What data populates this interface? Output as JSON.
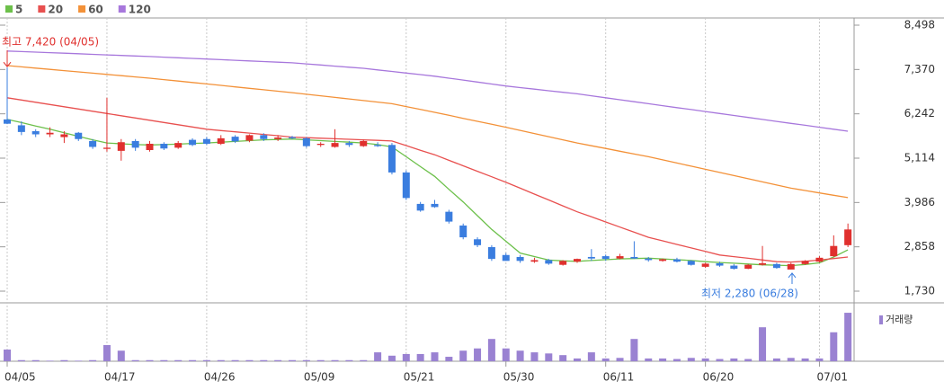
{
  "chart_data": {
    "type": "candlestick",
    "categories": [
      "04/05",
      null,
      null,
      null,
      null,
      null,
      null,
      "04/17",
      null,
      null,
      null,
      null,
      null,
      null,
      "04/26",
      null,
      null,
      null,
      null,
      null,
      null,
      "05/09",
      null,
      null,
      null,
      null,
      null,
      null,
      "05/21",
      null,
      null,
      null,
      null,
      null,
      null,
      "05/30",
      null,
      null,
      null,
      null,
      null,
      null,
      "06/11",
      null,
      null,
      null,
      null,
      null,
      null,
      "06/20",
      null,
      null,
      null,
      null,
      null,
      null,
      null,
      "07/01",
      null,
      null
    ],
    "open": [
      6100,
      5950,
      5800,
      5720,
      5650,
      5760,
      5550,
      5350,
      5300,
      5550,
      5320,
      5480,
      5380,
      5580,
      5600,
      5480,
      5660,
      5560,
      5700,
      5600,
      5650,
      5620,
      5450,
      5400,
      5500,
      5420,
      5450,
      5450,
      4750,
      3950,
      3950,
      3750,
      3400,
      3050,
      2850,
      2650,
      2600,
      2480,
      2520,
      2400,
      2480,
      2600,
      2620,
      2560,
      2600,
      2560,
      2500,
      2540,
      2500,
      2350,
      2440,
      2380,
      2300,
      2400,
      2420,
      2280,
      2420,
      2480,
      2620,
      2900
    ],
    "high": [
      7420,
      6050,
      5850,
      5900,
      5800,
      5780,
      5600,
      6650,
      5600,
      5600,
      5550,
      5520,
      5550,
      5620,
      5650,
      5700,
      5700,
      5720,
      5750,
      5700,
      5680,
      5650,
      5520,
      5850,
      5550,
      5580,
      5520,
      5500,
      4800,
      4000,
      4050,
      3800,
      3450,
      3100,
      2900,
      2700,
      2650,
      2580,
      2550,
      2520,
      2560,
      2800,
      2660,
      2680,
      3000,
      2600,
      2560,
      2580,
      2520,
      2450,
      2480,
      2420,
      2420,
      2880,
      2450,
      2450,
      2520,
      2620,
      3150,
      3450
    ],
    "low": [
      5980,
      5700,
      5650,
      5650,
      5500,
      5550,
      5350,
      5280,
      5050,
      5300,
      5280,
      5320,
      5350,
      5420,
      5450,
      5450,
      5500,
      5520,
      5550,
      5550,
      5600,
      5380,
      5400,
      5380,
      5400,
      5400,
      5400,
      4700,
      4050,
      3750,
      3850,
      3450,
      3050,
      2850,
      2500,
      2500,
      2450,
      2450,
      2400,
      2380,
      2450,
      2500,
      2500,
      2540,
      2550,
      2480,
      2480,
      2460,
      2380,
      2320,
      2350,
      2280,
      2290,
      2380,
      2300,
      2280,
      2400,
      2460,
      2600,
      2850
    ],
    "close": [
      5990,
      5780,
      5720,
      5760,
      5720,
      5600,
      5400,
      5380,
      5520,
      5380,
      5480,
      5360,
      5500,
      5450,
      5480,
      5620,
      5540,
      5700,
      5600,
      5640,
      5620,
      5420,
      5480,
      5500,
      5450,
      5550,
      5420,
      4750,
      4100,
      3780,
      3870,
      3500,
      3100,
      2900,
      2550,
      2500,
      2500,
      2520,
      2430,
      2500,
      2550,
      2560,
      2550,
      2620,
      2560,
      2520,
      2540,
      2480,
      2400,
      2430,
      2380,
      2300,
      2400,
      2440,
      2320,
      2420,
      2500,
      2580,
      2880,
      3300
    ],
    "up_color": "#e0302e",
    "down_color": "#3a7ddf",
    "series": [
      {
        "name": "5",
        "color": "#6cc04a",
        "values": [
          6100,
          6020,
          5930,
          5850,
          5760,
          5670,
          5580,
          5500,
          5480,
          5460,
          5450,
          5460,
          5470,
          5490,
          5500,
          5520,
          5540,
          5560,
          5580,
          5590,
          5600,
          5580,
          5560,
          5540,
          5520,
          5500,
          5460,
          5400,
          5150,
          4900,
          4650,
          4320,
          4000,
          3650,
          3300,
          3000,
          2700,
          2610,
          2520,
          2500,
          2490,
          2510,
          2530,
          2550,
          2560,
          2570,
          2550,
          2530,
          2510,
          2480,
          2460,
          2440,
          2420,
          2400,
          2390,
          2380,
          2410,
          2450,
          2600,
          2780
        ]
      },
      {
        "name": "20",
        "color": "#e8504f",
        "values": [
          6650,
          6593,
          6536,
          6479,
          6422,
          6365,
          6308,
          6250,
          6193,
          6136,
          6079,
          6022,
          5965,
          5908,
          5850,
          5817,
          5784,
          5751,
          5718,
          5685,
          5650,
          5636,
          5622,
          5608,
          5594,
          5580,
          5566,
          5550,
          5433,
          5316,
          5200,
          5060,
          4920,
          4780,
          4640,
          4500,
          4350,
          4200,
          4050,
          3900,
          3750,
          3620,
          3490,
          3360,
          3230,
          3100,
          3010,
          2920,
          2830,
          2740,
          2650,
          2608,
          2566,
          2524,
          2480,
          2470,
          2490,
          2520,
          2560,
          2600
        ]
      },
      {
        "name": "60",
        "color": "#f39138",
        "values": [
          7470,
          7438,
          7406,
          7374,
          7342,
          7310,
          7278,
          7246,
          7214,
          7182,
          7150,
          7113,
          7076,
          7039,
          7002,
          6965,
          6928,
          6891,
          6854,
          6817,
          6780,
          6740,
          6700,
          6660,
          6620,
          6580,
          6540,
          6500,
          6427,
          6354,
          6280,
          6204,
          6128,
          6052,
          5976,
          5900,
          5820,
          5740,
          5660,
          5580,
          5500,
          5430,
          5360,
          5290,
          5220,
          5150,
          5070,
          4990,
          4910,
          4830,
          4750,
          4670,
          4590,
          4510,
          4430,
          4350,
          4290,
          4230,
          4170,
          4110
        ]
      },
      {
        "name": "120",
        "color": "#a777dc",
        "values": [
          7840,
          7826,
          7812,
          7798,
          7784,
          7770,
          7756,
          7742,
          7728,
          7714,
          7700,
          7684,
          7668,
          7652,
          7636,
          7620,
          7604,
          7588,
          7572,
          7556,
          7540,
          7512,
          7484,
          7456,
          7428,
          7400,
          7360,
          7320,
          7280,
          7240,
          7200,
          7150,
          7100,
          7050,
          7000,
          6950,
          6910,
          6870,
          6830,
          6790,
          6750,
          6700,
          6650,
          6600,
          6550,
          6500,
          6450,
          6400,
          6350,
          6300,
          6250,
          6200,
          6150,
          6100,
          6050,
          6000,
          5950,
          5900,
          5850,
          5800
        ]
      }
    ],
    "ylim": [
      1730,
      8498
    ],
    "yticks": [
      {
        "value": 8498,
        "label": "8,498"
      },
      {
        "value": 7370,
        "label": "7,370"
      },
      {
        "value": 6242,
        "label": "6,242"
      },
      {
        "value": 5114,
        "label": "5,114"
      },
      {
        "value": 3986,
        "label": "3,986"
      },
      {
        "value": 2858,
        "label": "2,858"
      },
      {
        "value": 1730,
        "label": "1,730"
      }
    ],
    "volume": {
      "name": "거래량",
      "color": "#9a82d2",
      "vlim": [
        0,
        100
      ],
      "values": [
        21,
        2,
        2,
        1,
        2,
        1,
        2,
        29,
        19,
        2,
        2,
        2,
        2,
        2,
        2,
        2,
        2,
        2,
        2,
        2,
        2,
        2,
        2,
        2,
        2,
        2,
        16,
        10,
        13,
        13,
        16,
        8,
        19,
        23,
        40,
        23,
        19,
        16,
        14,
        11,
        5,
        16,
        5,
        6,
        40,
        5,
        5,
        4,
        6,
        5,
        4,
        5,
        4,
        61,
        5,
        6,
        5,
        5,
        52,
        87
      ]
    },
    "annotations": [
      {
        "text": "최고 7,420 (04/05)",
        "value": 7420,
        "color": "#e0302e"
      },
      {
        "text": "최저 2,280 (06/28)",
        "value": 2280,
        "color": "#3a7ddf"
      }
    ]
  }
}
